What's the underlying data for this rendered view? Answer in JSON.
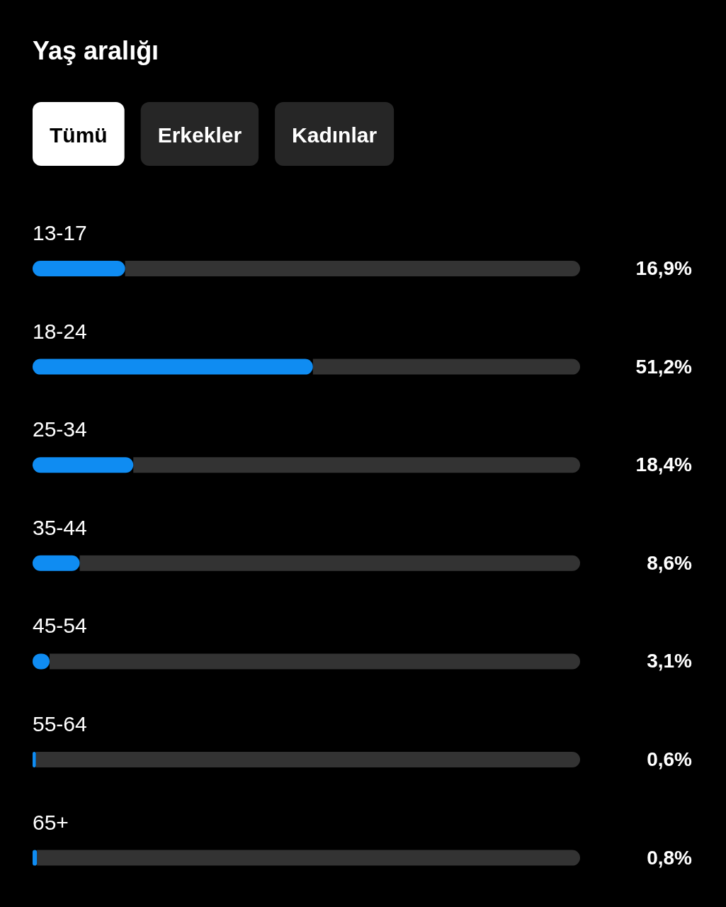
{
  "chart_data": {
    "type": "bar",
    "orientation": "horizontal",
    "title": "Yaş aralığı",
    "annotations": [
      "Tümü",
      "Erkekler",
      "Kadınlar"
    ],
    "categories": [
      "13-17",
      "18-24",
      "25-34",
      "35-44",
      "45-54",
      "55-64",
      "65+"
    ],
    "values": [
      16.9,
      51.2,
      18.4,
      8.6,
      3.1,
      0.6,
      0.8
    ],
    "value_labels": [
      "16,9%",
      "51,2%",
      "18,4%",
      "8,6%",
      "3,1%",
      "0,6%",
      "0,8%"
    ],
    "color": "#0f8cf2",
    "xlim": [
      0,
      100
    ]
  }
}
